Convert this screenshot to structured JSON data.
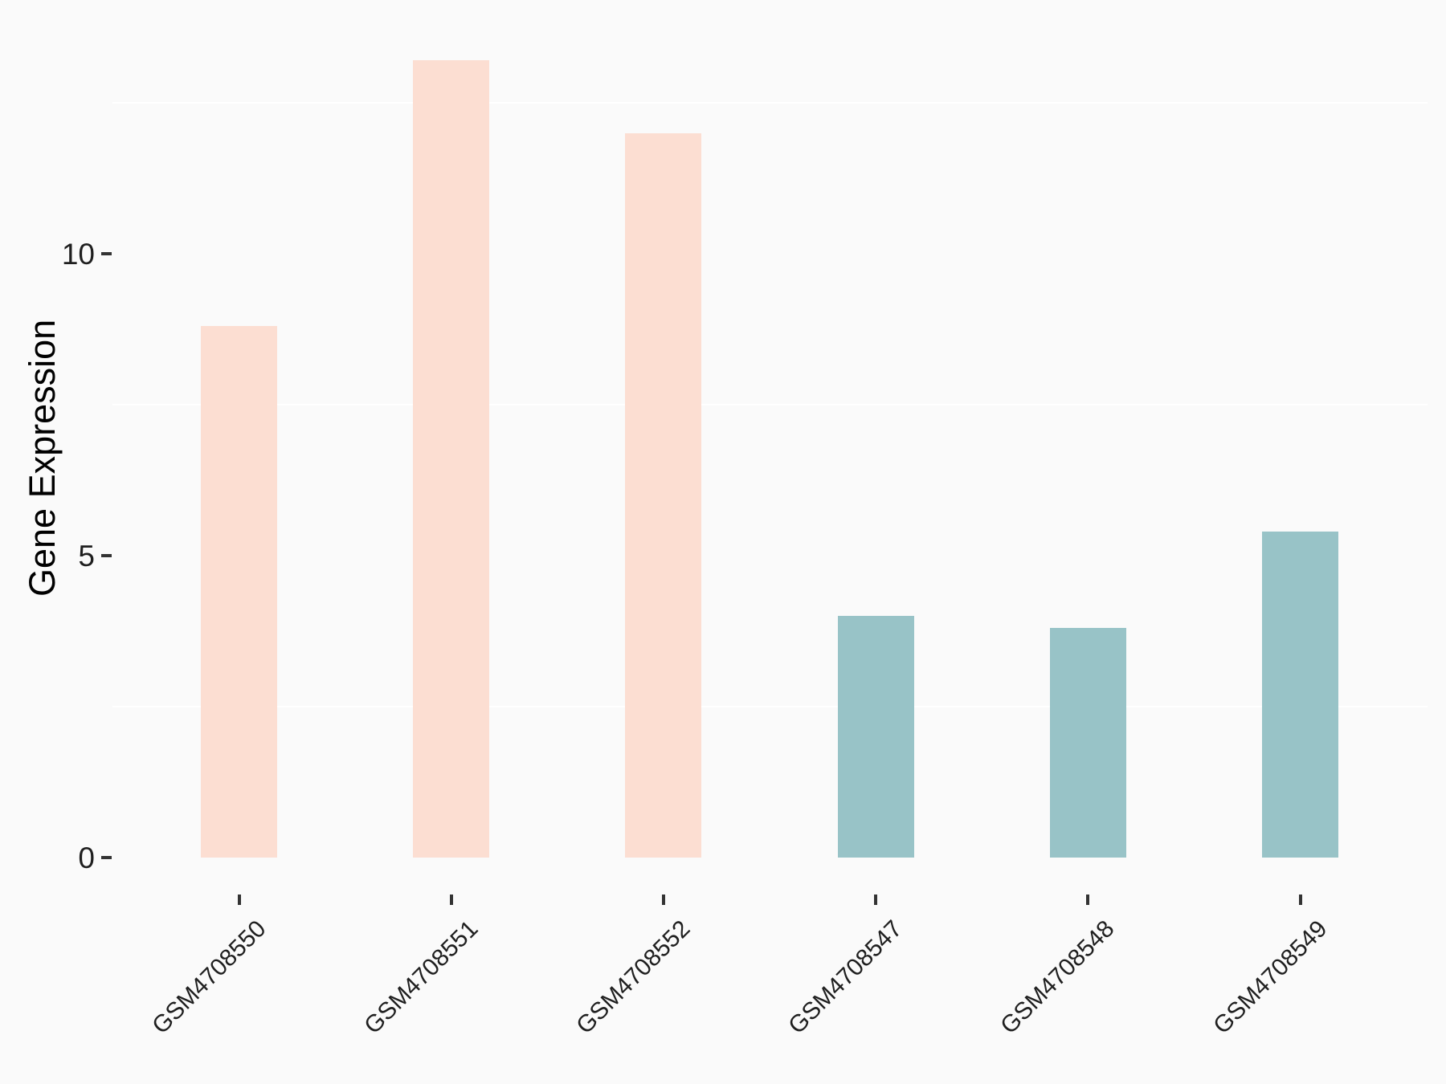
{
  "page": {
    "background_color": "#FAFAFA",
    "gridline_color": "#FFFFFF",
    "tick_mark_color": "#333333",
    "axis_text_color": "#1F1F1F",
    "axis_title_color": "#000000"
  },
  "chart_data": {
    "type": "bar",
    "title": "",
    "xlabel": "",
    "ylabel": "Gene Expression",
    "categories": [
      "GSM4708550",
      "GSM4708551",
      "GSM4708552",
      "GSM4708547",
      "GSM4708548",
      "GSM4708549"
    ],
    "series": [
      {
        "name": "Gene Expression",
        "values": [
          8.8,
          13.2,
          12.0,
          4.0,
          3.8,
          5.4
        ]
      }
    ],
    "bar_groups": [
      "group-a",
      "group-a",
      "group-a",
      "group-b",
      "group-b",
      "group-b"
    ],
    "group_colors": {
      "group-a": "#FCDED2",
      "group-b": "#98C3C7"
    },
    "y_ticks": [
      0,
      5,
      10
    ],
    "y_minor_gridlines": [
      2.5,
      7.5,
      12.5
    ],
    "ylim": [
      -0.6,
      13.8
    ],
    "grid": "minor-horizontal-only",
    "legend": "none",
    "x_label_rotation_deg": 45
  }
}
